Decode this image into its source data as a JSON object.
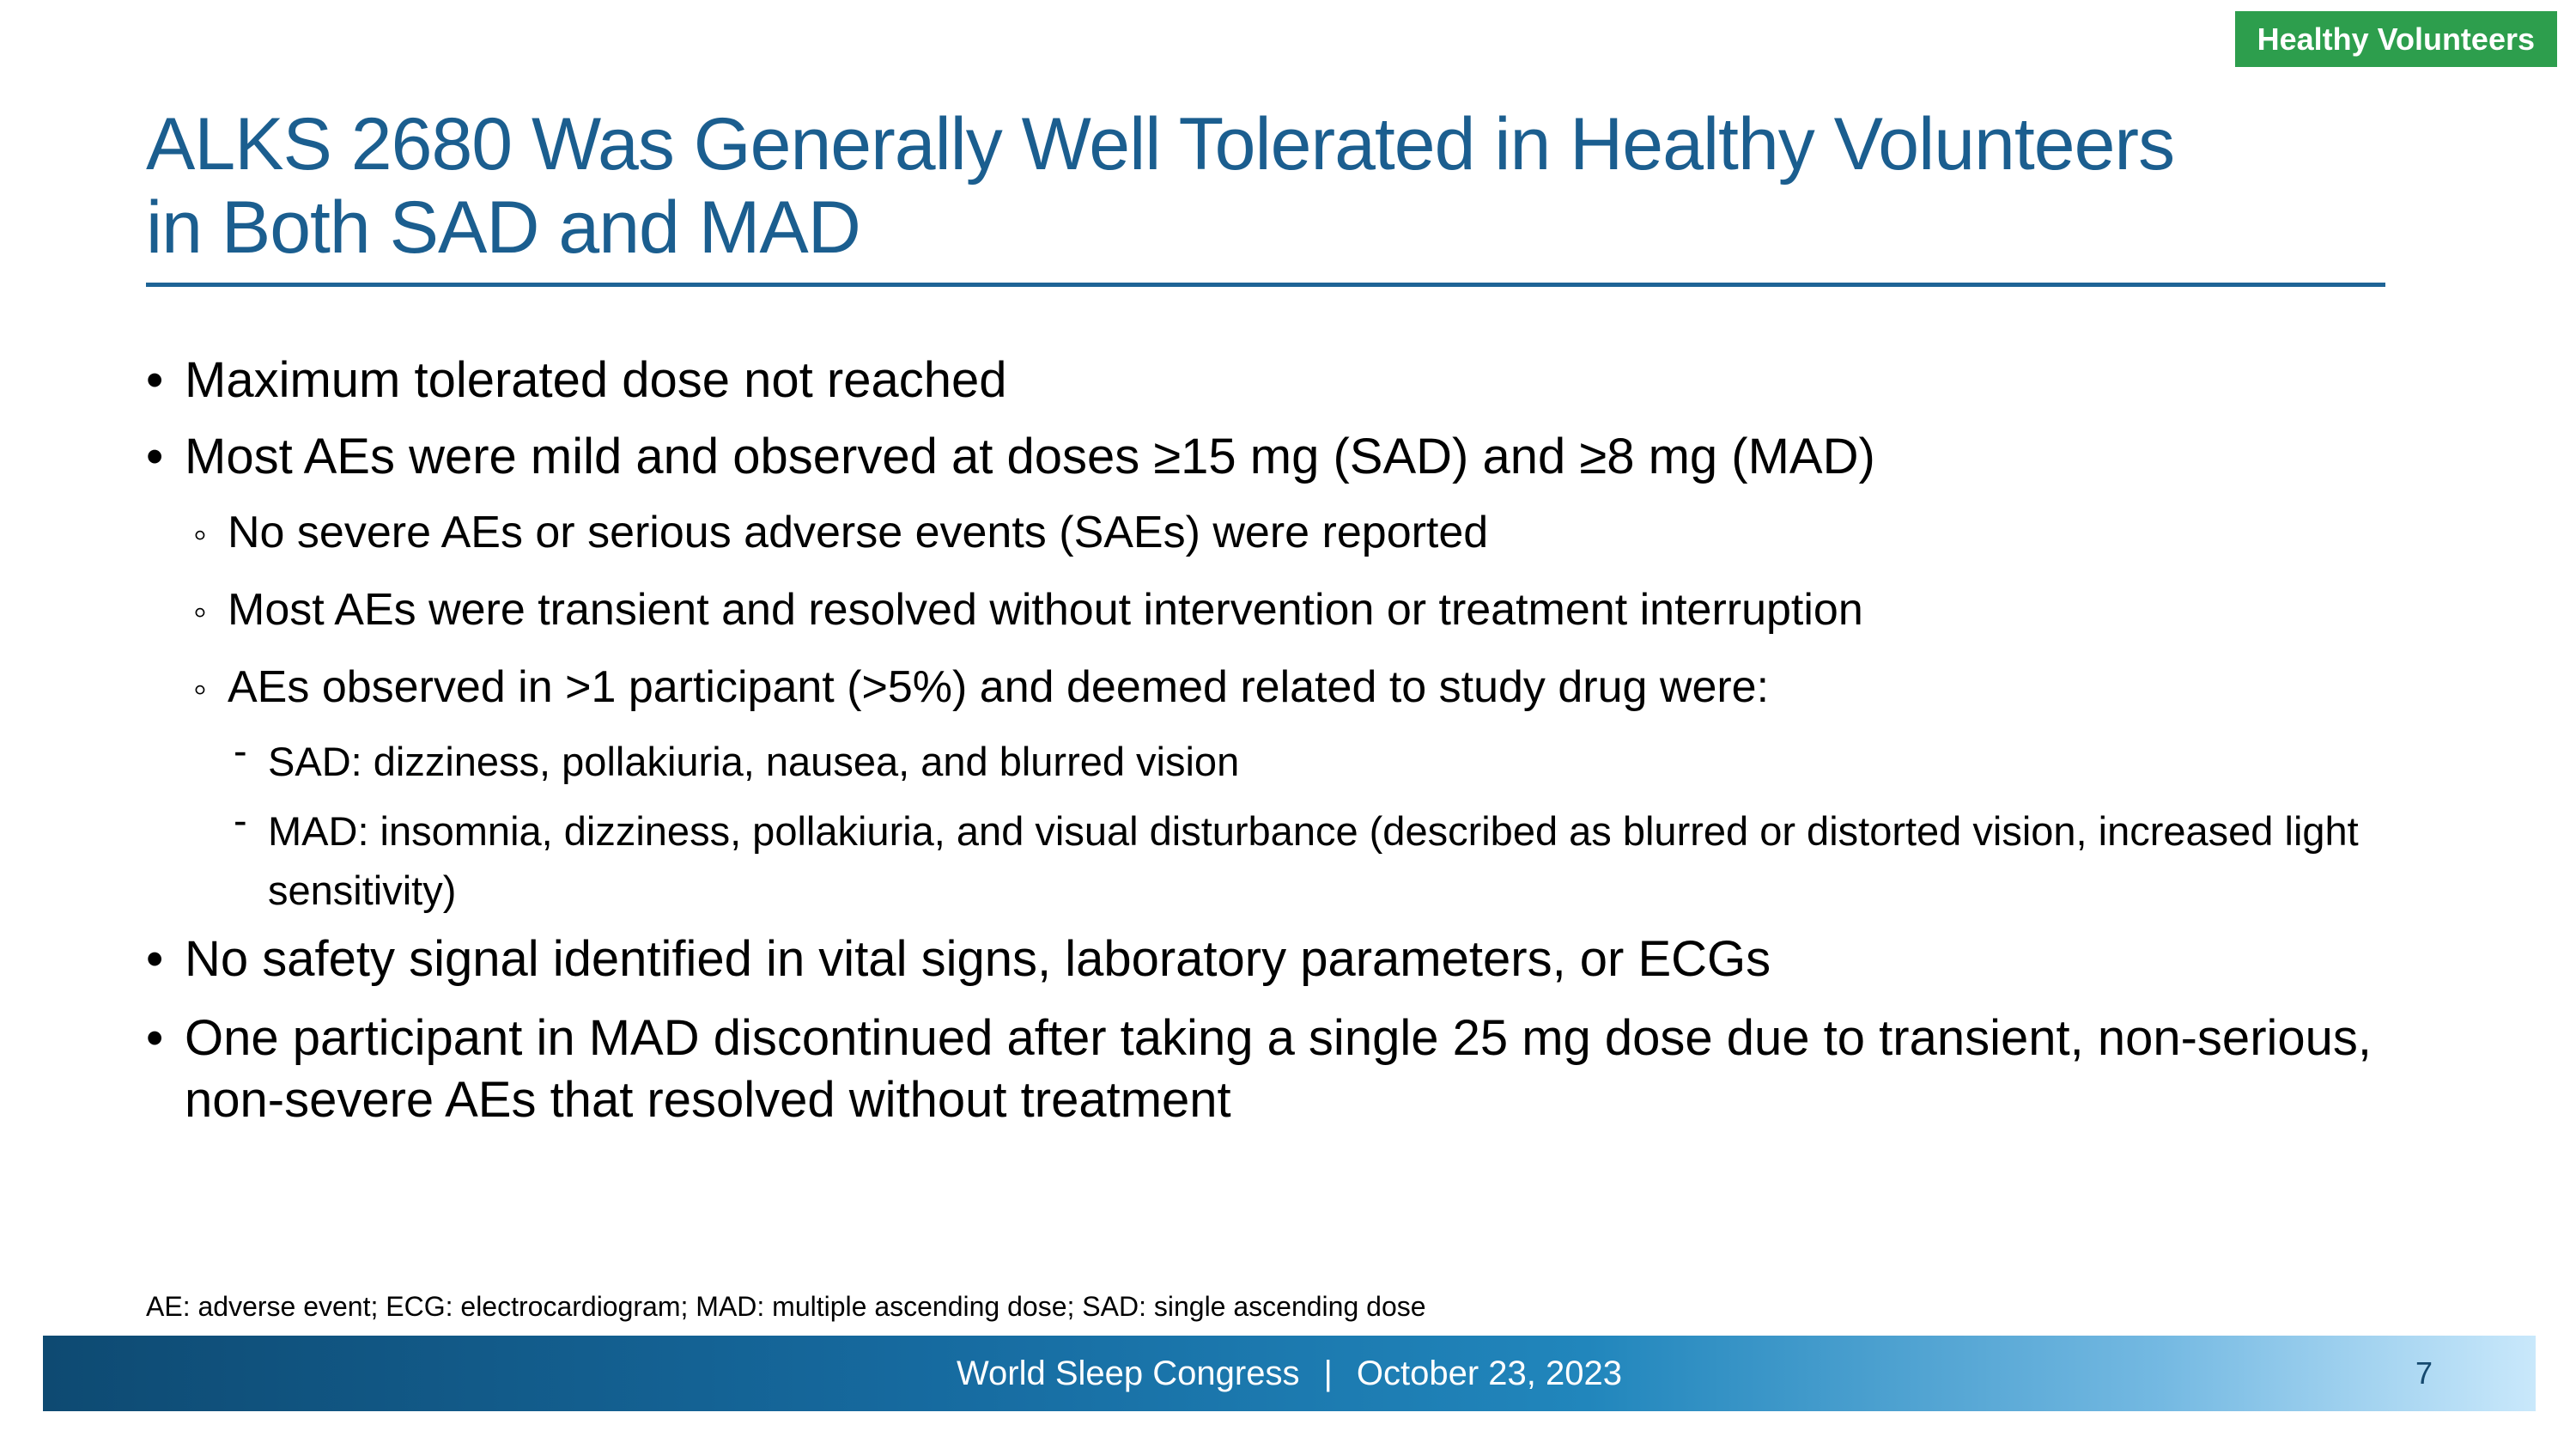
{
  "badge": {
    "label": "Healthy Volunteers"
  },
  "title": {
    "line1": "ALKS 2680 Was Generally Well Tolerated in Healthy Volunteers",
    "line2": "in Both SAD and MAD"
  },
  "content": {
    "items": [
      {
        "level": 1,
        "marker": "•",
        "text": "Maximum tolerated dose not reached"
      },
      {
        "level": 1,
        "marker": "•",
        "text": "Most AEs were mild and observed at doses ≥15 mg (SAD) and ≥8 mg (MAD)"
      },
      {
        "level": 2,
        "marker": "◦",
        "text": "No severe AEs or serious adverse events (SAEs) were reported"
      },
      {
        "level": 2,
        "marker": "◦",
        "text": "Most AEs were transient and resolved without intervention or treatment interruption"
      },
      {
        "level": 2,
        "marker": "◦",
        "text": "AEs observed in >1 participant (>5%) and deemed related to study drug were:"
      },
      {
        "level": 3,
        "marker": "-",
        "text": "SAD: dizziness, pollakiuria, nausea, and blurred vision"
      },
      {
        "level": 3,
        "marker": "-",
        "text": "MAD: insomnia, dizziness, pollakiuria, and visual disturbance (described as blurred or distorted vision, increased light sensitivity)"
      },
      {
        "level": 1,
        "marker": "•",
        "text": "No safety signal identified in vital signs, laboratory parameters, or ECGs"
      },
      {
        "level": 1,
        "marker": "•",
        "text": "One participant in MAD discontinued after taking a single 25 mg dose due to transient, non-serious, non-severe AEs that resolved without treatment"
      }
    ]
  },
  "footnote": "AE: adverse event; ECG: electrocardiogram; MAD: multiple ascending dose; SAD: single ascending dose",
  "footer": {
    "congress": "World Sleep Congress",
    "separator": "|",
    "date": "October 23, 2023",
    "page": "7"
  },
  "colors": {
    "badge_bg": "#2d9e4d",
    "badge_text": "#ffffff",
    "title": "#1b5e8f",
    "rule": "#1e6496",
    "body_text": "#000000",
    "bar_start": "#0e4a72",
    "bar_end": "#c9e8fb",
    "footer_text": "#ffffff",
    "page_number": "#15496f"
  }
}
